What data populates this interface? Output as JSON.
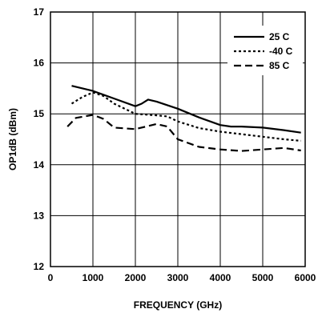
{
  "chart_data": {
    "type": "line",
    "title": "",
    "xlabel": "FREQUENCY (GHz)",
    "ylabel": "OP1dB (dBm)",
    "xlim": [
      0,
      6000
    ],
    "ylim": [
      12,
      17
    ],
    "xticks": [
      0,
      1000,
      2000,
      3000,
      4000,
      5000,
      6000
    ],
    "yticks": [
      12,
      13,
      14,
      15,
      16,
      17
    ],
    "grid": true,
    "legend_position": "top-right",
    "series": [
      {
        "name": "25 C",
        "style": "solid",
        "x": [
          500,
          1000,
          1500,
          2000,
          2150,
          2300,
          2500,
          3000,
          3500,
          4000,
          4250,
          4500,
          5000,
          5500,
          5900
        ],
        "y": [
          15.55,
          15.45,
          15.3,
          15.15,
          15.2,
          15.28,
          15.24,
          15.1,
          14.93,
          14.78,
          14.75,
          14.75,
          14.73,
          14.68,
          14.63
        ]
      },
      {
        "name": "-40 C",
        "style": "dotted",
        "x": [
          500,
          750,
          1000,
          1250,
          1500,
          2000,
          2500,
          2750,
          3000,
          3500,
          4000,
          4500,
          5000,
          5500,
          5900
        ],
        "y": [
          15.2,
          15.33,
          15.42,
          15.35,
          15.2,
          15.0,
          14.97,
          14.95,
          14.85,
          14.72,
          14.65,
          14.6,
          14.55,
          14.5,
          14.47
        ]
      },
      {
        "name": "85 C",
        "style": "dashed",
        "x": [
          400,
          600,
          1000,
          1250,
          1500,
          2000,
          2500,
          2750,
          3000,
          3500,
          4000,
          4500,
          5000,
          5500,
          5900
        ],
        "y": [
          14.75,
          14.92,
          14.98,
          14.9,
          14.73,
          14.7,
          14.8,
          14.75,
          14.5,
          14.35,
          14.3,
          14.27,
          14.3,
          14.33,
          14.28
        ]
      }
    ]
  }
}
